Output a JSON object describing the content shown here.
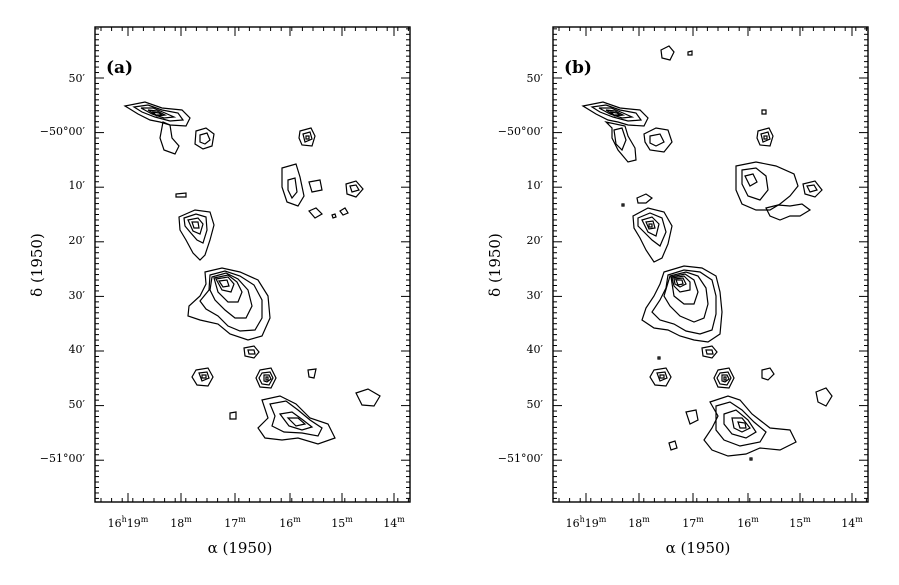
{
  "figure": {
    "panels": [
      {
        "label": "(a)",
        "x_tick_labels": [
          {
            "h": "16",
            "hs": "h",
            "m": "19",
            "ms": "m"
          },
          {
            "h": "",
            "hs": "",
            "m": "18",
            "ms": "m"
          },
          {
            "h": "",
            "hs": "",
            "m": "17",
            "ms": "m"
          },
          {
            "h": "",
            "hs": "",
            "m": "16",
            "ms": "m"
          },
          {
            "h": "",
            "hs": "",
            "m": "15",
            "ms": "m"
          },
          {
            "h": "",
            "hs": "",
            "m": "14",
            "ms": "m"
          }
        ],
        "y_tick_labels": [
          "50′",
          "−50°00′",
          "10′",
          "20′",
          "30′",
          "40′",
          "50′",
          "−51°00′"
        ],
        "xlabel": "α (1950)",
        "ylabel": "δ (1950)"
      },
      {
        "label": "(b)",
        "x_tick_labels": [
          {
            "h": "16",
            "hs": "h",
            "m": "19",
            "ms": "m"
          },
          {
            "h": "",
            "hs": "",
            "m": "18",
            "ms": "m"
          },
          {
            "h": "",
            "hs": "",
            "m": "17",
            "ms": "m"
          },
          {
            "h": "",
            "hs": "",
            "m": "16",
            "ms": "m"
          },
          {
            "h": "",
            "hs": "",
            "m": "15",
            "ms": "m"
          },
          {
            "h": "",
            "hs": "",
            "m": "14",
            "ms": "m"
          }
        ],
        "y_tick_labels": [
          "50′",
          "−50°00′",
          "10′",
          "20′",
          "30′",
          "40′",
          "50′",
          "−51°00′"
        ],
        "xlabel": "α (1950)",
        "ylabel": "δ (1950)"
      }
    ]
  }
}
